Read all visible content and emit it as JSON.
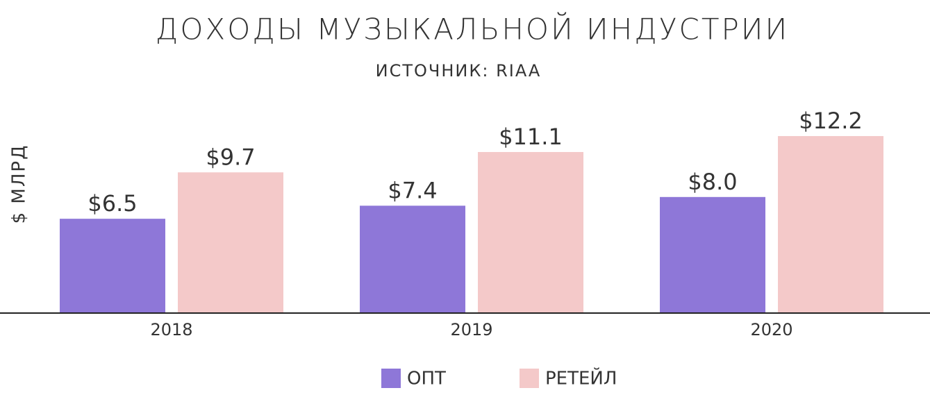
{
  "chart_data": {
    "type": "bar",
    "title": "ДОХОДЫ МУЗЫКАЛЬНОЙ ИНДУСТРИИ",
    "subtitle": "ИСТОЧНИК: RIAA",
    "y_label": "$ МЛРД",
    "categories": [
      "2018",
      "2019",
      "2020"
    ],
    "series": [
      {
        "name": "ОПТ",
        "color": "#8e77d8",
        "values": [
          6.5,
          7.4,
          8.0
        ],
        "value_labels": [
          "$6.5",
          "$7.4",
          "$8.0"
        ]
      },
      {
        "name": "РЕТЕЙЛ",
        "color": "#f4c9c9",
        "values": [
          9.7,
          11.1,
          12.2
        ],
        "value_labels": [
          "$9.7",
          "$11.1",
          "$12.2"
        ]
      }
    ],
    "ylim": [
      0,
      20
    ],
    "grid": false
  }
}
